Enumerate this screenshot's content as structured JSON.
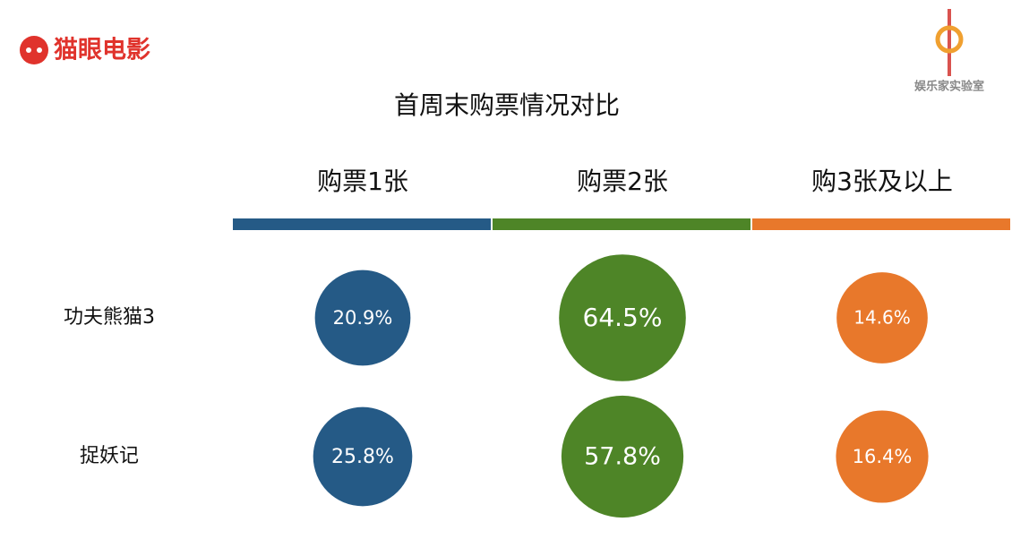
{
  "header": {
    "logo_left": "猫眼电影",
    "logo_right": "娱乐家实验室"
  },
  "chart_data": {
    "type": "bubble-table",
    "title": "首周末购票情况对比",
    "categories": [
      "功夫熊猫3",
      "捉妖记"
    ],
    "series": [
      {
        "name": "购票1张",
        "color": "#255a86",
        "values": [
          20.9,
          25.8
        ],
        "value_labels": [
          "20.9%",
          "25.8%"
        ]
      },
      {
        "name": "购票2张",
        "color": "#4e8527",
        "values": [
          64.5,
          57.8
        ],
        "value_labels": [
          "64.5%",
          "57.8%"
        ]
      },
      {
        "name": "购3张及以上",
        "color": "#e8782b",
        "values": [
          14.6,
          16.4
        ],
        "value_labels": [
          "14.6%",
          "16.4%"
        ]
      }
    ]
  }
}
